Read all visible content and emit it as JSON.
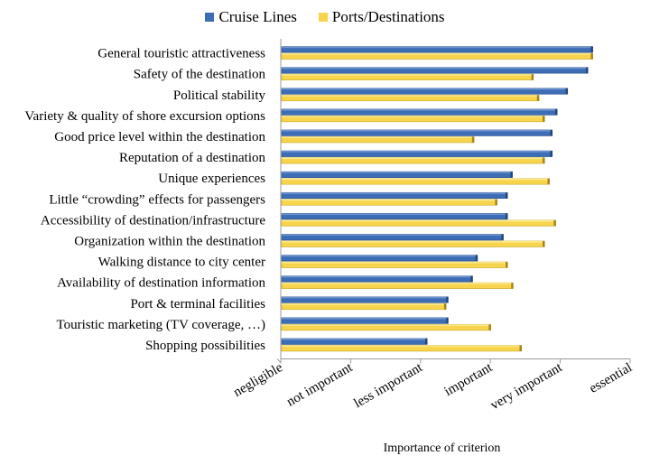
{
  "chart_data": {
    "type": "bar",
    "orientation": "horizontal",
    "categories": [
      "General touristic attractiveness",
      "Safety of the destination",
      "Political stability",
      "Variety & quality of shore excursion options",
      "Good price level within the destination",
      "Reputation of a destination",
      "Unique experiences",
      "Little “crowding” effects for passengers",
      "Accessibility of destination/infrastructure",
      "Organization within the destination",
      "Walking distance to city center",
      "Availability of destination information",
      "Port & terminal facilities",
      "Touristic marketing (TV coverage, …)",
      "Shopping possibilities"
    ],
    "series": [
      {
        "name": "Cruise Lines",
        "color": "#3d6db5",
        "values": [
          4.45,
          4.38,
          4.09,
          3.94,
          3.87,
          3.87,
          3.3,
          3.23,
          3.23,
          3.17,
          2.8,
          2.73,
          2.38,
          2.38,
          2.08
        ]
      },
      {
        "name": "Ports/Destinations",
        "color": "#f7d44c",
        "values": [
          4.45,
          3.6,
          3.68,
          3.76,
          2.75,
          3.76,
          3.83,
          3.08,
          3.92,
          3.76,
          3.23,
          3.31,
          2.35,
          2.99,
          3.43
        ]
      }
    ],
    "x_ticks": [
      "negligible",
      "not important",
      "less important",
      "important",
      "very important",
      "essential"
    ],
    "xlim": [
      0,
      5
    ],
    "xlabel": "Importance of criterion",
    "legend": "top",
    "grid": false
  }
}
